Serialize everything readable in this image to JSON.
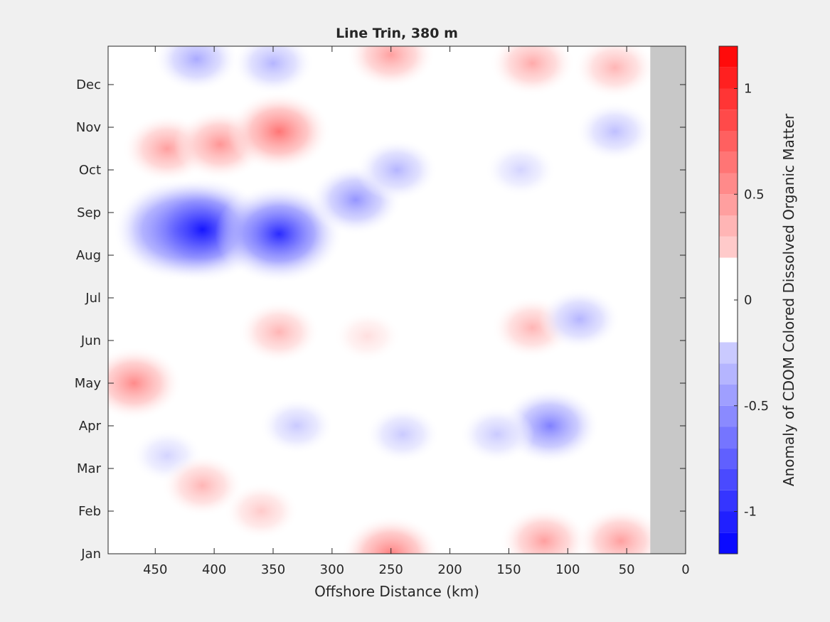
{
  "chart_data": {
    "type": "heatmap",
    "title": "Line Trin, 380 m",
    "xlabel": "Offshore Distance (km)",
    "ylabel": "",
    "xlim": [
      490,
      0
    ],
    "x_reversed": true,
    "x_ticks": [
      450,
      400,
      350,
      300,
      250,
      200,
      150,
      100,
      50,
      0
    ],
    "y_ticks": [
      "Jan",
      "Feb",
      "Mar",
      "Apr",
      "May",
      "Jun",
      "Jul",
      "Aug",
      "Sep",
      "Oct",
      "Nov",
      "Dec"
    ],
    "no_data_region_km": [
      30,
      0
    ],
    "colorbar": {
      "label": "Anomaly of CDOM Colored Dissolved Organic Matter",
      "range": [
        -1.2,
        1.2
      ],
      "ticks": [
        -1,
        -0.5,
        0,
        0.5,
        1
      ],
      "tick_labels": [
        "-1",
        "-0.5",
        "0",
        "0.5",
        "1"
      ],
      "step": 0.1,
      "colormap": "blue-white-red"
    },
    "features": [
      {
        "x": 430,
        "month": 7.6,
        "value": -1.05
      },
      {
        "x": 410,
        "month": 7.6,
        "value": -1.1
      },
      {
        "x": 345,
        "month": 7.5,
        "value": -1.0
      },
      {
        "x": 280,
        "month": 8.3,
        "value": -0.5
      },
      {
        "x": 245,
        "month": 9.0,
        "value": -0.35
      },
      {
        "x": 140,
        "month": 9.0,
        "value": -0.2
      },
      {
        "x": 60,
        "month": 9.9,
        "value": -0.3
      },
      {
        "x": 440,
        "month": 9.5,
        "value": 0.45
      },
      {
        "x": 395,
        "month": 9.6,
        "value": 0.5
      },
      {
        "x": 345,
        "month": 9.9,
        "value": 0.65
      },
      {
        "x": 250,
        "month": 11.7,
        "value": 0.45
      },
      {
        "x": 130,
        "month": 11.5,
        "value": 0.4
      },
      {
        "x": 60,
        "month": 11.4,
        "value": 0.35
      },
      {
        "x": 415,
        "month": 11.6,
        "value": -0.4
      },
      {
        "x": 350,
        "month": 11.5,
        "value": -0.35
      },
      {
        "x": 468,
        "month": 4.0,
        "value": 0.55
      },
      {
        "x": 345,
        "month": 5.2,
        "value": 0.35
      },
      {
        "x": 270,
        "month": 5.1,
        "value": 0.15
      },
      {
        "x": 130,
        "month": 5.3,
        "value": 0.35
      },
      {
        "x": 90,
        "month": 5.5,
        "value": -0.35
      },
      {
        "x": 330,
        "month": 3.0,
        "value": -0.25
      },
      {
        "x": 240,
        "month": 2.8,
        "value": -0.25
      },
      {
        "x": 115,
        "month": 3.0,
        "value": -0.6
      },
      {
        "x": 160,
        "month": 2.8,
        "value": -0.25
      },
      {
        "x": 440,
        "month": 2.3,
        "value": -0.2
      },
      {
        "x": 410,
        "month": 1.6,
        "value": 0.35
      },
      {
        "x": 360,
        "month": 1.0,
        "value": 0.25
      },
      {
        "x": 250,
        "month": 0.0,
        "value": 0.6
      },
      {
        "x": 120,
        "month": 0.3,
        "value": 0.45
      },
      {
        "x": 55,
        "month": 0.3,
        "value": 0.45
      }
    ]
  }
}
